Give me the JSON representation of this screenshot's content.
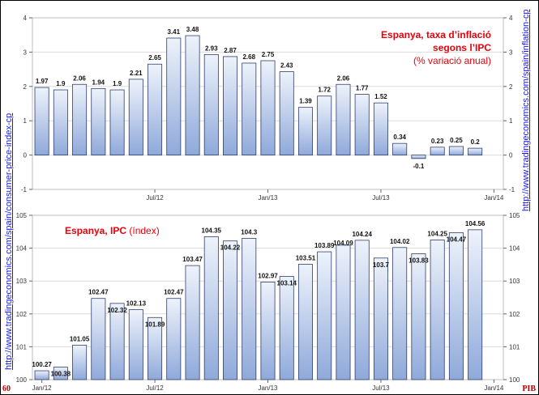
{
  "side_links": {
    "left": "http://www.tradingeconomics.com/spain/consumer-price-index-cp",
    "right": "http://www.tradingeconomics.com/spain/inflation-cp"
  },
  "footer": {
    "page_number": "60",
    "tag": "PIB"
  },
  "colors": {
    "title": "#e8000b",
    "bar_top": "#eef3fb",
    "bar_bottom": "#8fa9da",
    "bar_border": "#2f3f6e"
  },
  "chart_data": [
    {
      "type": "bar",
      "title": "Espanya, taxa d’inflació segons l’IPC",
      "subtitle": "(% variació anual)",
      "categories": [
        "Jan/12",
        "Feb/12",
        "Mar/12",
        "Apr/12",
        "May/12",
        "Jun/12",
        "Jul/12",
        "Aug/12",
        "Sep/12",
        "Oct/12",
        "Nov/12",
        "Dec/12",
        "Jan/13",
        "Feb/13",
        "Mar/13",
        "Apr/13",
        "May/13",
        "Jun/13",
        "Jul/13",
        "Aug/13",
        "Sep/13",
        "Oct/13",
        "Nov/13",
        "Dec/13",
        "Jan/14"
      ],
      "values": [
        1.97,
        1.9,
        2.06,
        1.94,
        1.9,
        2.21,
        2.65,
        3.41,
        3.48,
        2.93,
        2.87,
        2.68,
        2.75,
        2.43,
        1.39,
        1.72,
        2.06,
        1.77,
        1.52,
        0.34,
        -0.1,
        0.23,
        0.25,
        0.2,
        null
      ],
      "value_labels": [
        "1.97",
        "1.9",
        "2.06",
        "1.94",
        "1.9",
        "2.21",
        "2.65",
        "3.41",
        "3.48",
        "2.93",
        "2.87",
        "2.68",
        "2.75",
        "2.43",
        "1.39",
        "1.72",
        "2.06",
        "1.77",
        "1.52",
        "0.34",
        "-0.1",
        "0.23",
        "0.25",
        "0.2",
        ""
      ],
      "x_ticks": [
        "Jul/12",
        "Jan/13",
        "Jul/13",
        "Jan/14"
      ],
      "y_ticks": [
        "-1",
        "0",
        "1",
        "2",
        "3",
        "4"
      ],
      "ylim": [
        -1,
        4
      ],
      "grid": true
    },
    {
      "type": "bar",
      "title": "Espanya, IPC",
      "subtitle": "(índex)",
      "categories": [
        "Jan/12",
        "Feb/12",
        "Mar/12",
        "Apr/12",
        "May/12",
        "Jun/12",
        "Jul/12",
        "Aug/12",
        "Sep/12",
        "Oct/12",
        "Nov/12",
        "Dec/12",
        "Jan/13",
        "Feb/13",
        "Mar/13",
        "Apr/13",
        "May/13",
        "Jun/13",
        "Jul/13",
        "Aug/13",
        "Sep/13",
        "Oct/13",
        "Nov/13",
        "Dec/13",
        "Jan/14"
      ],
      "values": [
        100.27,
        100.38,
        101.05,
        102.47,
        102.32,
        102.13,
        101.89,
        102.47,
        103.47,
        104.35,
        104.22,
        104.3,
        102.97,
        103.14,
        103.51,
        103.89,
        104.09,
        104.24,
        103.7,
        104.02,
        103.83,
        104.25,
        104.47,
        104.56,
        null
      ],
      "value_labels": [
        "100.27",
        "100.38",
        "101.05",
        "102.47",
        "102.32",
        "102.13",
        "101.89",
        "102.47",
        "103.47",
        "104.35",
        "104.22",
        "104.3",
        "102.97",
        "103.14",
        "103.51",
        "103.89",
        "104.09",
        "104.24",
        "103.7",
        "104.02",
        "103.83",
        "104.25",
        "104.47",
        "104.56",
        ""
      ],
      "x_ticks": [
        "Jan/12",
        "Jul/12",
        "Jan/13",
        "Jul/13",
        "Jan/14"
      ],
      "y_ticks": [
        "100",
        "101",
        "102",
        "103",
        "104",
        "105"
      ],
      "ylim": [
        100,
        105
      ],
      "grid": true
    }
  ]
}
